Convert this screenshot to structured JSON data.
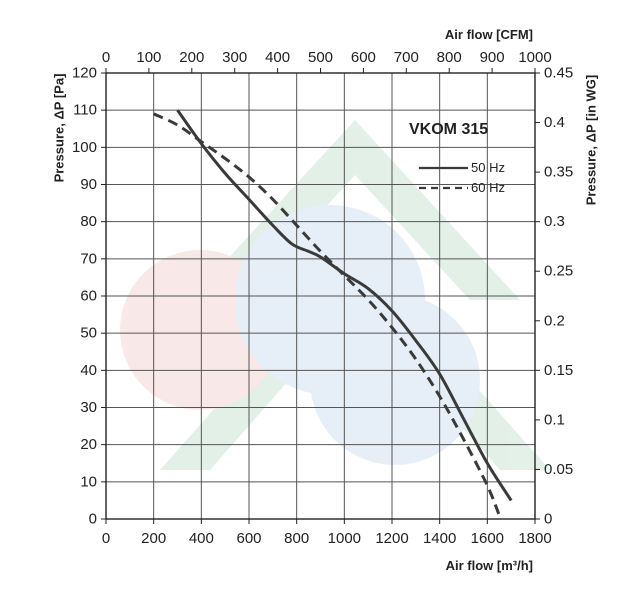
{
  "chart_data": {
    "type": "line",
    "title": "VKOM 315",
    "xlabel": "Air flow [m³/h]",
    "ylabel": "Pressure, ΔP [Pa]",
    "x2label": "Air flow [CFM]",
    "y2label": "Pressure, ΔP [in WG]",
    "xlim": [
      0,
      1800
    ],
    "ylim": [
      0,
      120
    ],
    "x2lim": [
      0,
      1000
    ],
    "y2lim": [
      0,
      0.45
    ],
    "xticks": [
      "0",
      "200",
      "400",
      "600",
      "800",
      "1000",
      "1200",
      "1400",
      "1600",
      "1800"
    ],
    "yticks": [
      "0",
      "10",
      "20",
      "30",
      "40",
      "50",
      "60",
      "70",
      "80",
      "90",
      "100",
      "110",
      "120"
    ],
    "x2ticks": [
      "0",
      "100",
      "200",
      "300",
      "400",
      "500",
      "600",
      "700",
      "800",
      "900",
      "1000"
    ],
    "y2ticks": [
      "0",
      "0.05",
      "0.1",
      "0.15",
      "0.2",
      "0.25",
      "0.3",
      "0.35",
      "0.4",
      "0.45"
    ],
    "grid": true,
    "legend_position": "top-right",
    "series": [
      {
        "name": "50 Hz",
        "style": "solid",
        "color": "#3a3a3a",
        "points": [
          [
            300,
            110
          ],
          [
            400,
            101
          ],
          [
            500,
            93
          ],
          [
            600,
            86
          ],
          [
            700,
            79
          ],
          [
            780,
            74
          ],
          [
            850,
            72
          ],
          [
            900,
            70.5
          ],
          [
            1000,
            66
          ],
          [
            1100,
            62
          ],
          [
            1200,
            56
          ],
          [
            1300,
            48
          ],
          [
            1400,
            39
          ],
          [
            1500,
            27
          ],
          [
            1600,
            15
          ],
          [
            1700,
            5
          ]
        ]
      },
      {
        "name": "60 Hz",
        "style": "dashed",
        "color": "#3a3a3a",
        "points": [
          [
            200,
            109
          ],
          [
            300,
            106
          ],
          [
            400,
            101.5
          ],
          [
            500,
            97
          ],
          [
            600,
            92
          ],
          [
            700,
            86
          ],
          [
            800,
            79
          ],
          [
            900,
            72
          ],
          [
            1000,
            65.5
          ],
          [
            1100,
            59
          ],
          [
            1200,
            51.5
          ],
          [
            1300,
            43
          ],
          [
            1400,
            33
          ],
          [
            1500,
            21.5
          ],
          [
            1600,
            9
          ],
          [
            1650,
            1
          ]
        ]
      }
    ]
  },
  "colors": {
    "grid": "#555555",
    "axis": "#222222",
    "line": "#3a3a3a",
    "watermark_green": "#7fbf9a",
    "watermark_blue": "#8fb4dc",
    "watermark_red": "#e89a9a"
  }
}
